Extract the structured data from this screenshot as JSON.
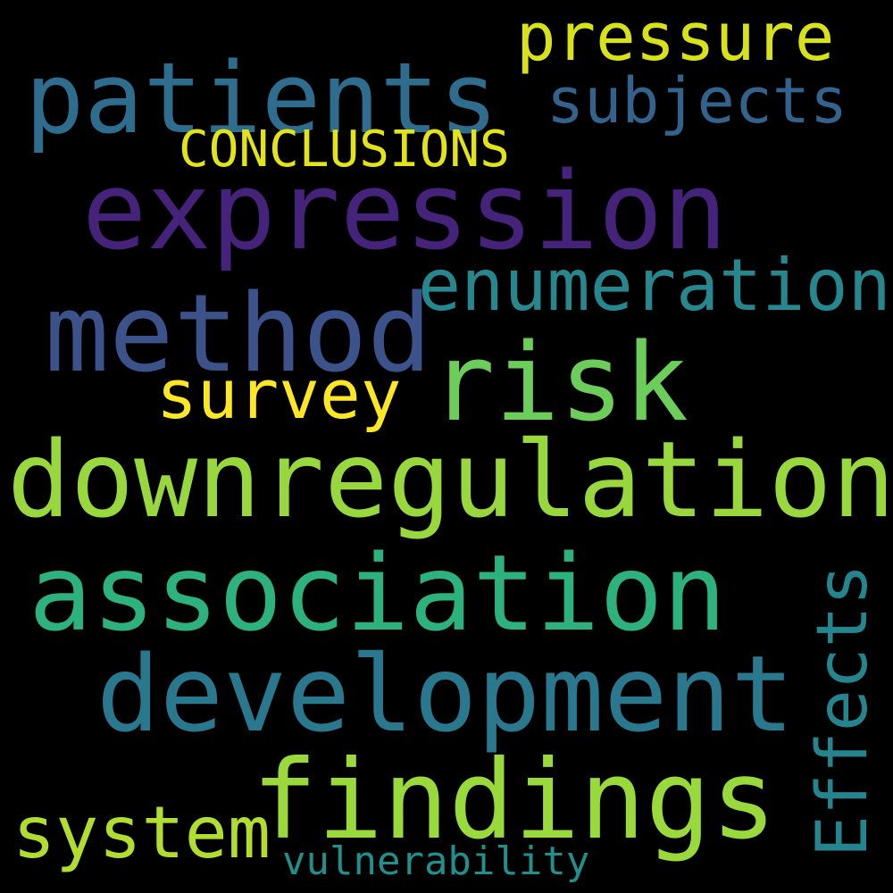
{
  "background": "#000000",
  "words": {
    "expression": {
      "text": "expression",
      "color": "#46237a"
    },
    "patients": {
      "text": "patients",
      "color": "#2e6d8e"
    },
    "downregulation": {
      "text": "downregulation",
      "color": "#98d83e"
    },
    "association": {
      "text": "association",
      "color": "#2db27d"
    },
    "development": {
      "text": "development",
      "color": "#2a788e"
    },
    "findings": {
      "text": "findings",
      "color": "#9ad93c"
    },
    "method": {
      "text": "method",
      "color": "#3b528b"
    },
    "risk": {
      "text": "risk",
      "color": "#6ccd5a"
    },
    "enumeration": {
      "text": "enumeration",
      "color": "#26888e"
    },
    "pressure": {
      "text": "pressure",
      "color": "#d8e219"
    },
    "subjects": {
      "text": "subjects",
      "color": "#33638d"
    },
    "survey": {
      "text": "survey",
      "color": "#fde725"
    },
    "conclusions": {
      "text": "CONCLUSIONS",
      "color": "#e3e418"
    },
    "effects": {
      "text": "Effects",
      "color": "#25858e"
    },
    "system": {
      "text": "system",
      "color": "#b0dd2f"
    },
    "vulnerability": {
      "text": "vulnerability",
      "color": "#21908d"
    }
  }
}
